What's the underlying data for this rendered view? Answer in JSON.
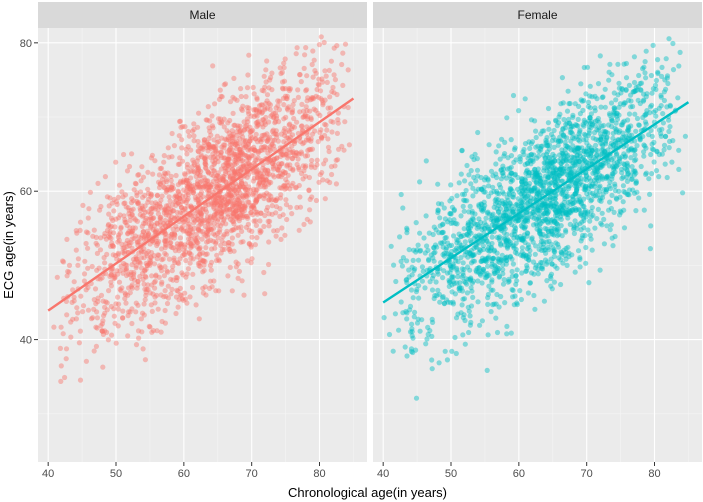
{
  "chart_data": {
    "type": "scatter",
    "title": "",
    "xlabel": "Chronological age(in years)",
    "ylabel": "ECG age(in years)",
    "xlim": [
      38.5,
      87
    ],
    "ylim": [
      23.5,
      82
    ],
    "xticks": [
      40,
      50,
      60,
      70,
      80
    ],
    "yticks": [
      40,
      60,
      80
    ],
    "grid": true,
    "points_per_panel_approx": 2200,
    "panels": [
      {
        "name": "Male",
        "color": "#F8766D",
        "alpha": 0.45,
        "x_range": [
          40,
          85
        ],
        "fit_line": {
          "x": [
            40,
            85
          ],
          "y": [
            43.9,
            72.5
          ]
        },
        "point_cloud": {
          "x_mode": 66,
          "residual_sd": 5.6
        }
      },
      {
        "name": "Female",
        "color": "#00BFC4",
        "alpha": 0.45,
        "x_range": [
          40,
          85
        ],
        "fit_line": {
          "x": [
            40,
            85
          ],
          "y": [
            45.0,
            72.0
          ]
        },
        "point_cloud": {
          "x_mode": 65,
          "residual_sd": 5.4
        }
      }
    ]
  }
}
